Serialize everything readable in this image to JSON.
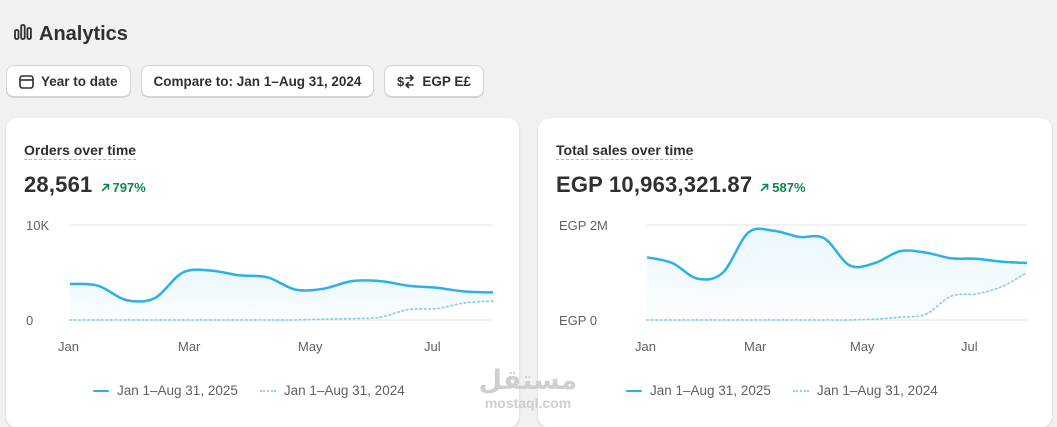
{
  "header": {
    "title": "Analytics",
    "icon": "bar-chart-icon"
  },
  "toolbar": {
    "date_range_label": "Year to date",
    "compare_label": "Compare to: Jan 1–Aug 31, 2024",
    "currency_label": "EGP E£"
  },
  "cards": [
    {
      "title": "Orders over time",
      "metric": "28,561",
      "delta": "797%",
      "y_ticks": [
        "10K",
        "0"
      ],
      "x_ticks": [
        "Jan",
        "Mar",
        "May",
        "Jul"
      ],
      "legend": [
        "Jan 1–Aug 31, 2025",
        "Jan 1–Aug 31, 2024"
      ]
    },
    {
      "title": "Total sales over time",
      "metric": "EGP 10,963,321.87",
      "delta": "587%",
      "y_ticks": [
        "EGP 2M",
        "EGP 0"
      ],
      "x_ticks": [
        "Jan",
        "Mar",
        "May",
        "Jul"
      ],
      "legend": [
        "Jan 1–Aug 31, 2025",
        "Jan 1–Aug 31, 2024"
      ]
    }
  ],
  "watermark": {
    "main": "مستقل",
    "sub": "mostaql.com"
  },
  "colors": {
    "primary_series": "#2cb0ea",
    "comparison_series": "#8ccfee",
    "positive_delta": "#0a8a4a"
  },
  "chart_data": [
    {
      "type": "area",
      "title": "Orders over time",
      "ylim": [
        0,
        10000
      ],
      "x_ticks": [
        "Jan",
        "Mar",
        "May",
        "Jul"
      ],
      "x": [
        "Jan 1",
        "Jan 15",
        "Feb 1",
        "Feb 15",
        "Mar 1",
        "Mar 15",
        "Apr 1",
        "Apr 15",
        "May 1",
        "May 15",
        "Jun 1",
        "Jun 15",
        "Jul 1",
        "Jul 15",
        "Aug 1",
        "Aug 31"
      ],
      "series": [
        {
          "name": "Jan 1–Aug 31, 2025",
          "values": [
            3800,
            3600,
            2100,
            2300,
            5000,
            5200,
            4700,
            4500,
            3200,
            3300,
            4100,
            4100,
            3600,
            3400,
            3000,
            2900
          ]
        },
        {
          "name": "Jan 1–Aug 31, 2024",
          "values": [
            0,
            0,
            0,
            0,
            0,
            0,
            0,
            0,
            0,
            100,
            150,
            300,
            1100,
            1200,
            1800,
            2000
          ]
        }
      ]
    },
    {
      "type": "area",
      "title": "Total sales over time",
      "ylim": [
        0,
        2000000
      ],
      "x_ticks": [
        "Jan",
        "Mar",
        "May",
        "Jul"
      ],
      "x": [
        "Jan 1",
        "Jan 15",
        "Feb 1",
        "Feb 15",
        "Mar 1",
        "Mar 15",
        "Apr 1",
        "Apr 15",
        "May 1",
        "May 15",
        "Jun 1",
        "Jun 15",
        "Jul 1",
        "Jul 15",
        "Aug 1",
        "Aug 31"
      ],
      "series": [
        {
          "name": "Jan 1–Aug 31, 2025",
          "values": [
            1320000,
            1200000,
            870000,
            1000000,
            1840000,
            1880000,
            1750000,
            1720000,
            1150000,
            1200000,
            1450000,
            1420000,
            1300000,
            1290000,
            1230000,
            1200000
          ]
        },
        {
          "name": "Jan 1–Aug 31, 2024",
          "values": [
            0,
            0,
            0,
            0,
            0,
            0,
            0,
            0,
            0,
            20000,
            60000,
            120000,
            500000,
            550000,
            700000,
            1000000
          ]
        }
      ]
    }
  ]
}
